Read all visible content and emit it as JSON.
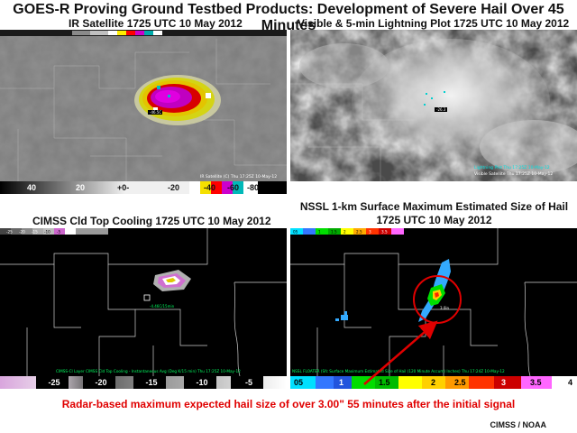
{
  "header": {
    "title": "GOES-R Proving Ground Testbed Products: Development of Severe Hail Over 45 Minutes"
  },
  "panels": {
    "ir": {
      "title": "IR Satellite  1725 UTC 10 May 2012",
      "footer": "IR Satellite (C)   Thu 17:25Z 10-May-12",
      "colorbar_labels": [
        "40",
        "20",
        "+0-",
        "-20",
        "-40",
        "-60",
        "-80"
      ]
    },
    "visible": {
      "title": "Visible & 5-min Lightning Plot  1725 UTC 10 May 2012",
      "footer_line1": "Lightning Plot  Thu 17:25Z 10-May-12",
      "footer_line2": "Visible Satellite  Thu 17:25Z 10-May-12"
    },
    "cimss": {
      "title": "CIMSS Cld Top Cooling 1725 UTC 10 May 2012",
      "colorbar_labels": [
        "-25",
        "-20",
        "-15",
        "-10",
        "-5"
      ],
      "mini_labels": [
        "-25",
        "-20",
        "-15",
        "-10",
        "-5"
      ],
      "footer": "CIMSS-Cl Layer CIMSS Cld Top Cooling - Instantaneous Avg (Deg K/15 min)  Thu 17:25Z 10-May-12",
      "marker_label": "-4.46C/15min"
    },
    "nssl": {
      "title_line1": "NSSL 1-km Surface Maximum Estimated Size of Hail",
      "title_line2": "1725 UTC 10 May 2012",
      "colorbar_labels": [
        "05",
        "1",
        "1.5",
        "2",
        "2.5",
        "3",
        "3.5",
        "4"
      ],
      "mini_labels": [
        "05",
        "1",
        "1.5",
        "2",
        "2.5",
        "3",
        "3.5"
      ],
      "footer": "NSSL FLOATER (Sfc Surface Maximum Estimated Size of Hail (120 Minute Accum) Inches)  Thu 17:24Z 10-May-12",
      "hail_label": "3.0in"
    }
  },
  "caption": "Radar-based maximum expected hail size of over 3.00\" 55 minutes after the initial signal",
  "credit": "CIMSS / NOAA",
  "colors": {
    "caption_red": "#e00000",
    "highlight_circle": "#e00000",
    "county_lines": "#c8c8c8"
  }
}
